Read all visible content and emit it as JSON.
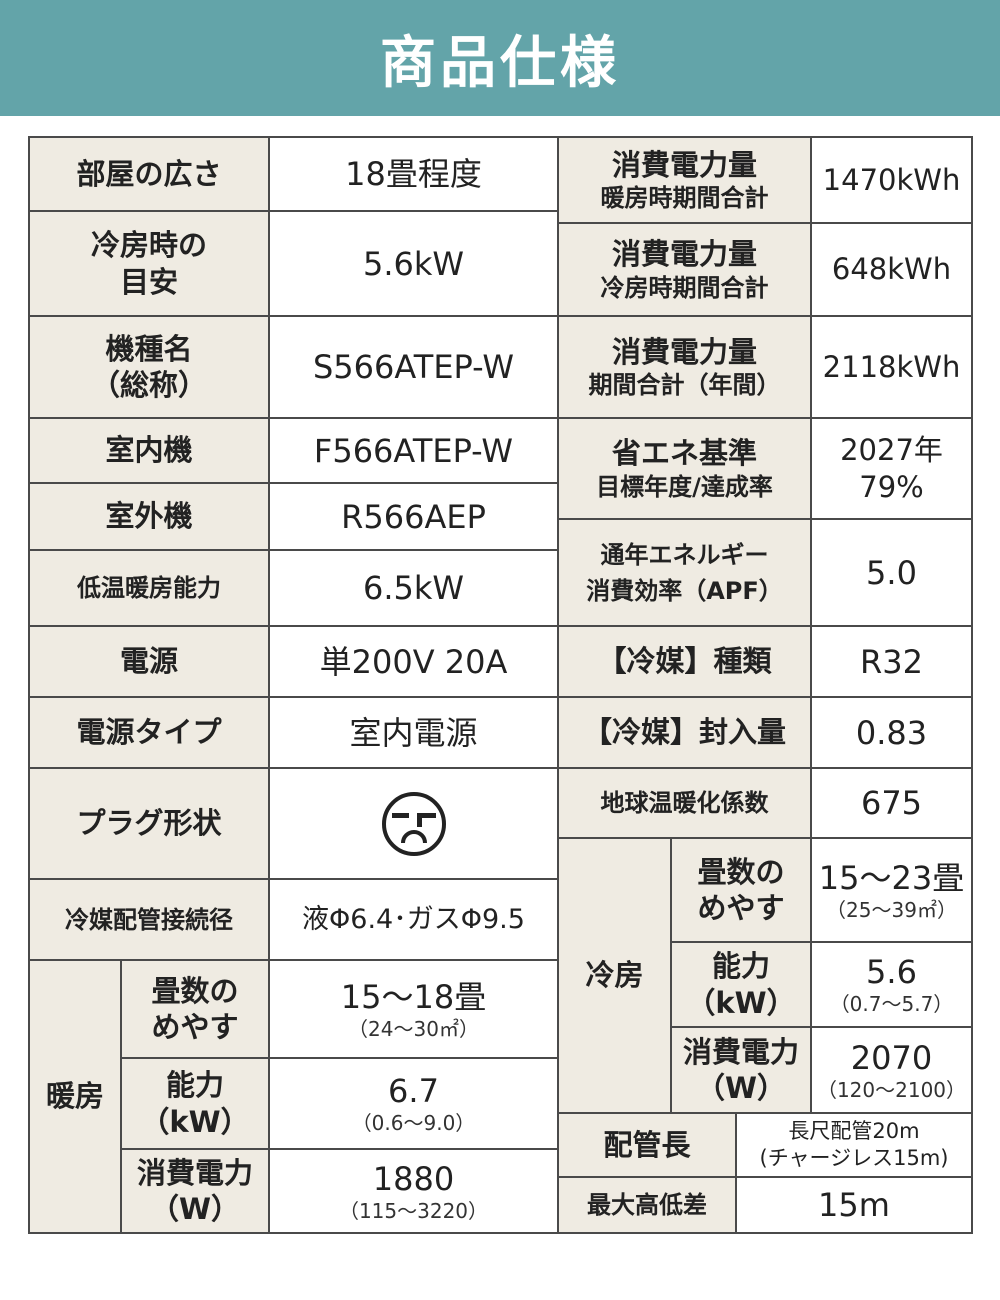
{
  "title": "商品仕様",
  "left": [
    {
      "label": "部屋の広さ",
      "value": "18畳程度"
    },
    {
      "label": "冷房時の\n目安",
      "value": "5.6kW"
    },
    {
      "label": "機種名\n（総称）",
      "value": "S566ATEP-W"
    },
    {
      "label": "室内機",
      "value": "F566ATEP-W"
    },
    {
      "label": "室外機",
      "value": "R566AEP"
    },
    {
      "label": "低温暖房能力",
      "value": "6.5kW"
    },
    {
      "label": "電源",
      "value": "単200V 20A"
    },
    {
      "label": "電源タイプ",
      "value": "室内電源"
    },
    {
      "label": "プラグ形状",
      "value": "",
      "icon": "plug-outlet-icon"
    },
    {
      "label": "冷媒配管接続径",
      "value": "液Φ6.4･ガスΦ9.5"
    }
  ],
  "heating": {
    "label": "暖房",
    "rows": [
      {
        "label": "畳数の\nめやす",
        "value": "15〜18畳",
        "sub": "（24〜30㎡）"
      },
      {
        "label": "能力\n（kW）",
        "value": "6.7",
        "sub": "（0.6〜9.0）"
      },
      {
        "label": "消費電力\n（W）",
        "value": "1880",
        "sub": "（115〜3220）"
      }
    ]
  },
  "right": [
    {
      "label": "消費電力量",
      "label2": "暖房時期間合計",
      "value": "1470kWh"
    },
    {
      "label": "消費電力量",
      "label2": "冷房時期間合計",
      "value": "648kWh"
    },
    {
      "label": "消費電力量",
      "label2": "期間合計（年間）",
      "value": "2118kWh"
    },
    {
      "label": "省エネ基準",
      "label2": "目標年度/達成率",
      "value": "2027年\n79%"
    },
    {
      "label": "通年エネルギー",
      "label2": "消費効率（APF）",
      "value": "5.0"
    },
    {
      "label": "【冷媒】種類",
      "value": "R32"
    },
    {
      "label": "【冷媒】封入量",
      "value": "0.83"
    },
    {
      "label": "地球温暖化係数",
      "value": "675"
    }
  ],
  "cooling": {
    "label": "冷房",
    "rows": [
      {
        "label": "畳数の\nめやす",
        "value": "15〜23畳",
        "sub": "（25〜39㎡）"
      },
      {
        "label": "能力\n（kW）",
        "value": "5.6",
        "sub": "（0.7〜5.7）"
      },
      {
        "label": "消費電力\n（W）",
        "value": "2070",
        "sub": "（120〜2100）"
      }
    ]
  },
  "piping": {
    "label": "配管長",
    "value": "長尺配管20m\n(チャージレス15m)"
  },
  "height_diff": {
    "label": "最大高低差",
    "value": "15m"
  }
}
